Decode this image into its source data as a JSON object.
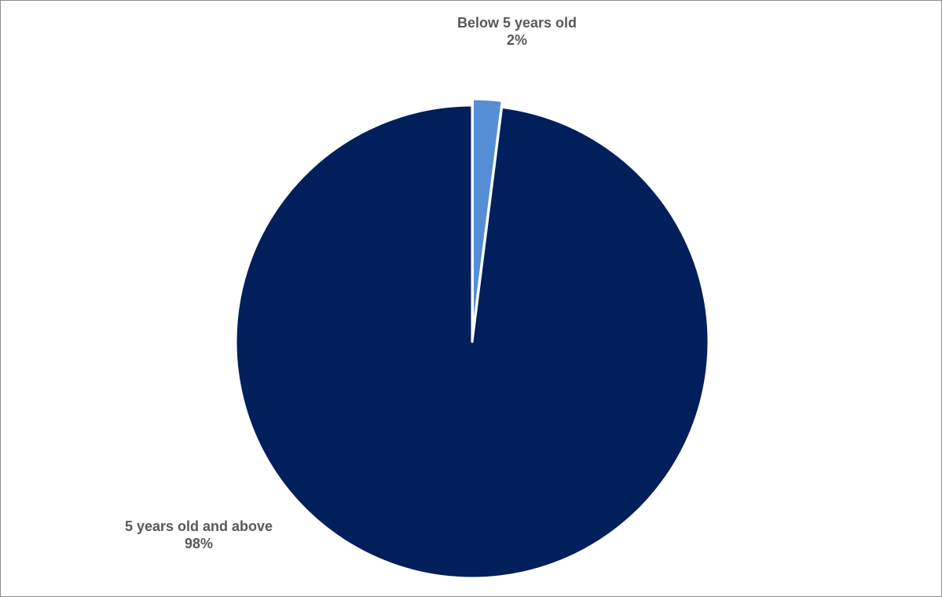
{
  "chart_data": {
    "type": "pie",
    "title": "",
    "slices": [
      {
        "label": "5 years old and above",
        "value": 98,
        "value_label": "98%",
        "color": "#001f5b",
        "exploded": false
      },
      {
        "label": "Below 5 years old",
        "value": 2,
        "value_label": "2%",
        "color": "#558ed5",
        "exploded": true
      }
    ],
    "start": "12 o'clock",
    "direction": "clockwise",
    "legend": "none",
    "data_labels": "category name and percentage"
  }
}
